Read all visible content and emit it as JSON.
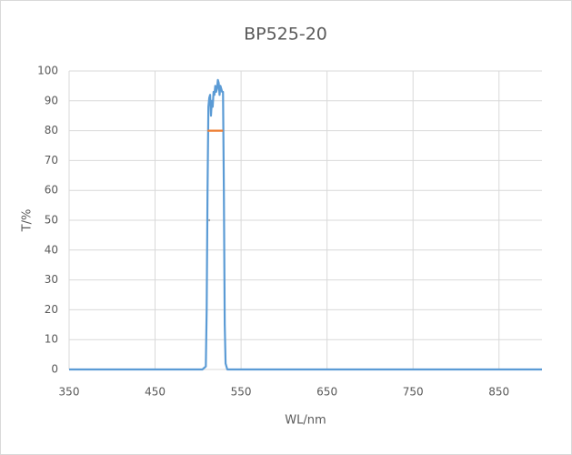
{
  "chart_data": {
    "type": "line",
    "title": "BP525-20",
    "x_label": "WL/nm",
    "y_label": "T/%",
    "series": [
      {
        "color": "#5b9bd5",
        "x": [
          350,
          505,
          509,
          510,
          511,
          512,
          513,
          514,
          515,
          516,
          517,
          518,
          519,
          520,
          521,
          522,
          523,
          524,
          525,
          526,
          527,
          528,
          529,
          530,
          531,
          532,
          534,
          900
        ],
        "values": [
          0,
          0,
          1,
          20,
          60,
          88,
          91,
          92,
          85,
          90,
          88,
          93,
          92,
          95,
          93,
          94,
          97,
          96,
          92,
          95,
          94,
          93,
          93,
          60,
          15,
          2,
          0,
          0
        ]
      },
      {
        "color": "#ed7d31",
        "x": [
          511,
          529
        ],
        "values": [
          80,
          80
        ]
      },
      {
        "color": "#a5a5a5",
        "x": [
          512,
          514
        ],
        "values": [
          50,
          50
        ]
      }
    ],
    "xlim": [
      350,
      900
    ],
    "xticks": [
      350,
      450,
      550,
      650,
      750,
      850
    ],
    "ylim": [
      0,
      100
    ],
    "yticks": [
      0,
      10,
      20,
      30,
      40,
      50,
      60,
      70,
      80,
      90,
      100
    ],
    "grid": true
  }
}
